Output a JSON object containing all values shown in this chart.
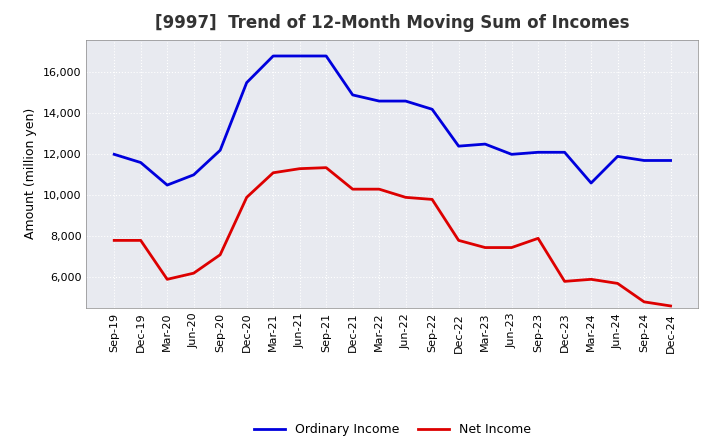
{
  "title": "[9997]  Trend of 12-Month Moving Sum of Incomes",
  "ylabel": "Amount (million yen)",
  "x_labels": [
    "Sep-19",
    "Dec-19",
    "Mar-20",
    "Jun-20",
    "Sep-20",
    "Dec-20",
    "Mar-21",
    "Jun-21",
    "Sep-21",
    "Dec-21",
    "Mar-22",
    "Jun-22",
    "Sep-22",
    "Dec-22",
    "Mar-23",
    "Jun-23",
    "Sep-23",
    "Dec-23",
    "Mar-24",
    "Jun-24",
    "Sep-24",
    "Dec-24"
  ],
  "ordinary_income": [
    12000,
    11600,
    10500,
    11000,
    12200,
    15500,
    16800,
    16800,
    16800,
    14900,
    14600,
    14600,
    14200,
    12400,
    12500,
    12000,
    12100,
    12100,
    10600,
    11900,
    11700,
    11700
  ],
  "net_income": [
    7800,
    7800,
    5900,
    6200,
    7100,
    9900,
    11100,
    11300,
    11350,
    10300,
    10300,
    9900,
    9800,
    7800,
    7450,
    7450,
    7900,
    5800,
    5900,
    5700,
    4800,
    4600
  ],
  "ordinary_color": "#0000dd",
  "net_color": "#dd0000",
  "ylim_min": 4500,
  "ylim_max": 17600,
  "yticks": [
    6000,
    8000,
    10000,
    12000,
    14000,
    16000
  ],
  "plot_bg_color": "#e8eaf0",
  "fig_bg_color": "#ffffff",
  "grid_color": "#ffffff",
  "title_fontsize": 12,
  "axis_label_fontsize": 9,
  "tick_fontsize": 8,
  "legend_fontsize": 9,
  "line_width": 2.0
}
